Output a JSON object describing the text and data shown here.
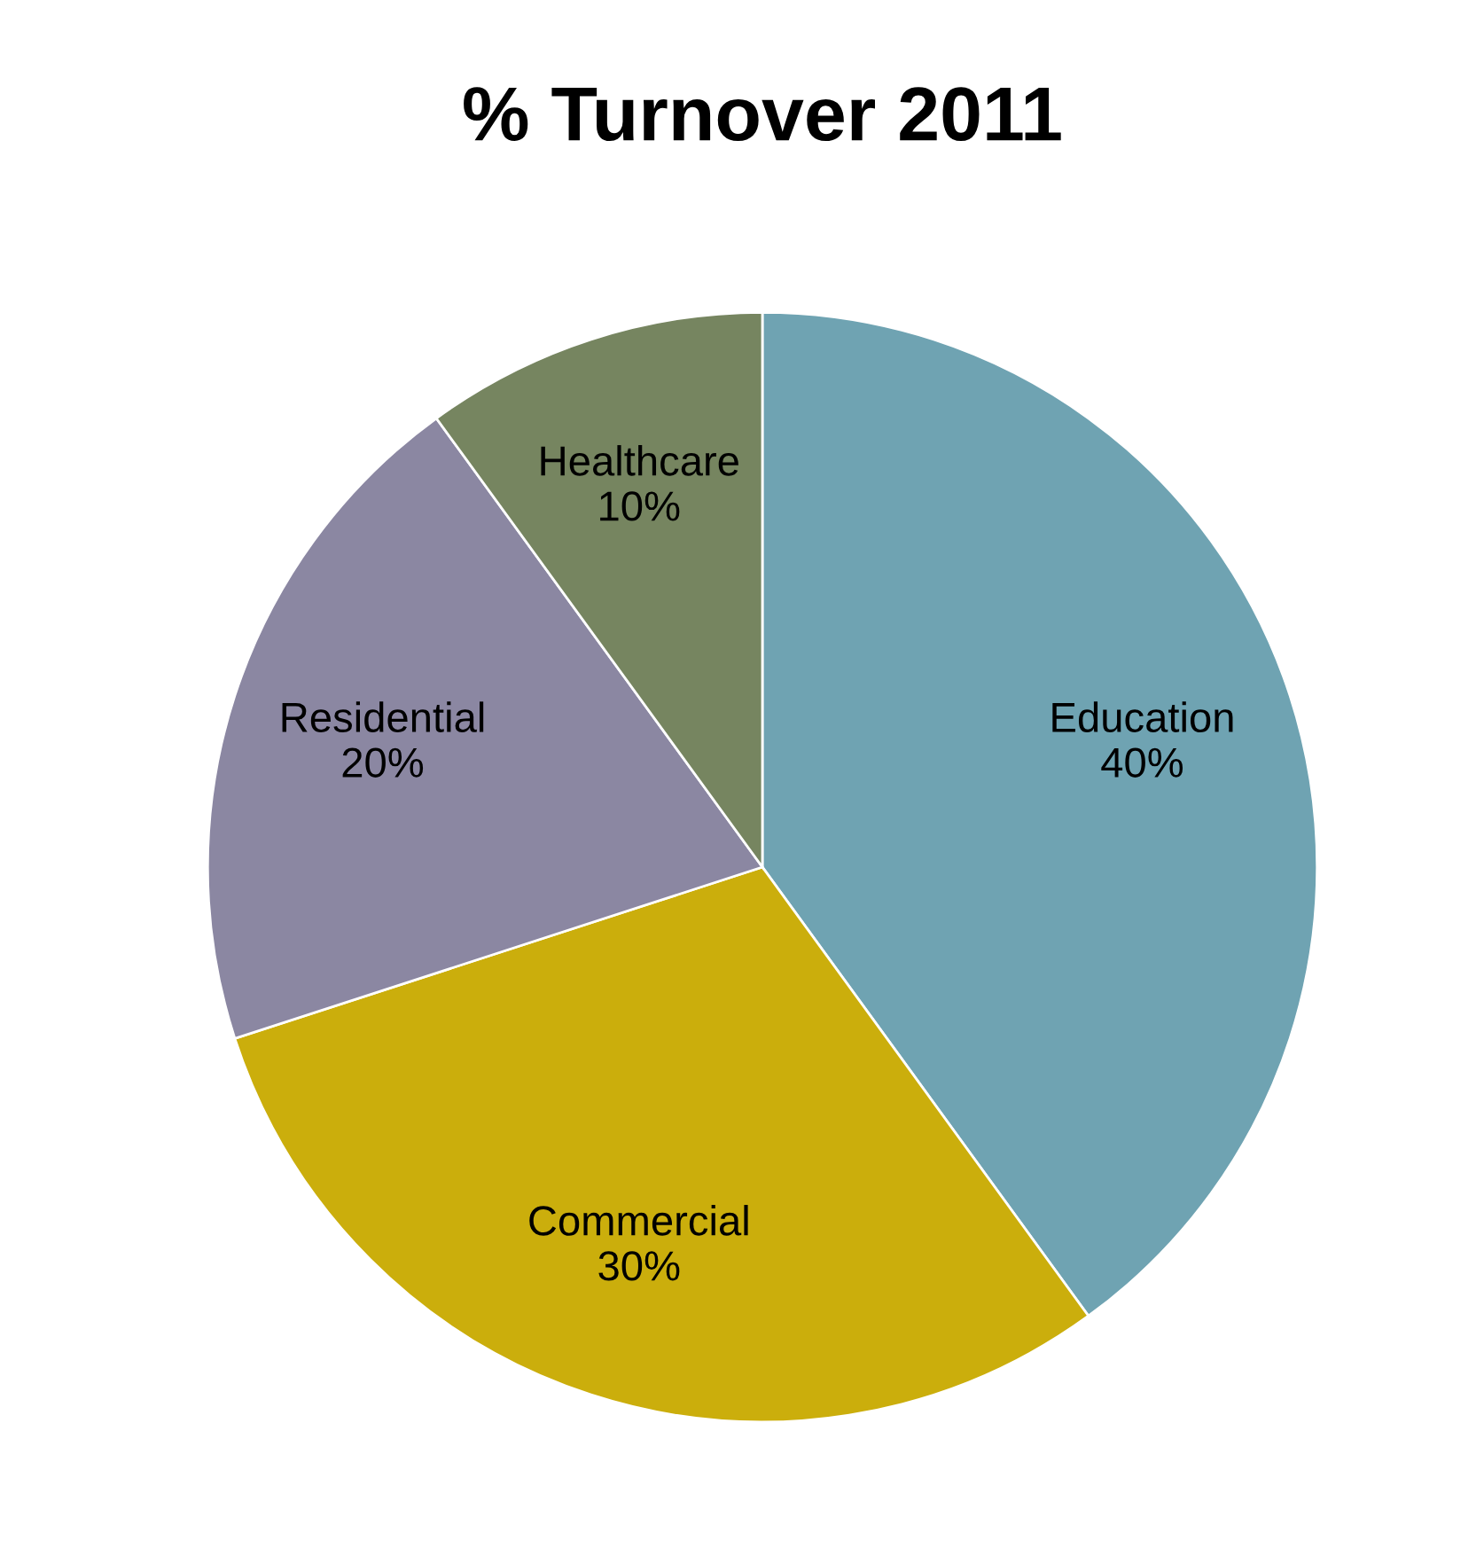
{
  "chart_data": {
    "type": "pie",
    "title": "% Turnover 2011",
    "categories": [
      "Education",
      "Commercial",
      "Residential",
      "Healthcare"
    ],
    "values": [
      40,
      30,
      20,
      10
    ],
    "value_labels": [
      "40%",
      "30%",
      "20%",
      "10%"
    ],
    "colors": [
      "#6fa3b2",
      "#cbae0c",
      "#8b87a2",
      "#768560"
    ],
    "legend": false
  }
}
